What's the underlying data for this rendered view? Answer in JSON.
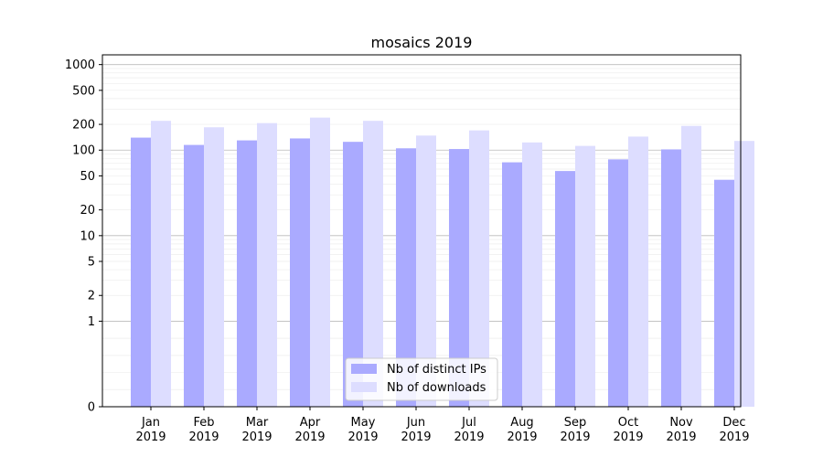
{
  "chart_data": {
    "type": "bar",
    "title": "mosaics 2019",
    "xlabel": "",
    "ylabel": "",
    "yscale": "symlog",
    "ylim": [
      0,
      1300
    ],
    "y_ticks": [
      0,
      1,
      2,
      5,
      10,
      20,
      50,
      100,
      200,
      500,
      1000
    ],
    "grid": true,
    "legend_position": "bottom-center",
    "categories": [
      [
        "Jan",
        "2019"
      ],
      [
        "Feb",
        "2019"
      ],
      [
        "Mar",
        "2019"
      ],
      [
        "Apr",
        "2019"
      ],
      [
        "May",
        "2019"
      ],
      [
        "Jun",
        "2019"
      ],
      [
        "Jul",
        "2019"
      ],
      [
        "Aug",
        "2019"
      ],
      [
        "Sep",
        "2019"
      ],
      [
        "Oct",
        "2019"
      ],
      [
        "Nov",
        "2019"
      ],
      [
        "Dec",
        "2019"
      ]
    ],
    "series": [
      {
        "name": "Nb of distinct IPs",
        "color": "#aaaaff",
        "values": [
          140,
          115,
          130,
          137,
          125,
          105,
          103,
          72,
          57,
          78,
          102,
          45
        ]
      },
      {
        "name": "Nb of downloads",
        "color": "#ddddff",
        "values": [
          220,
          185,
          207,
          240,
          220,
          148,
          170,
          123,
          112,
          144,
          192,
          128
        ]
      }
    ]
  }
}
